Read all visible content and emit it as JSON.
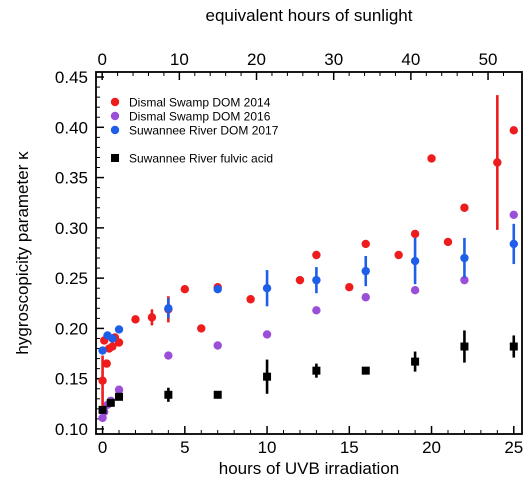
{
  "chart_data": {
    "type": "scatter",
    "title": "",
    "xlabel": "hours of UVB irradiation",
    "x2label": "equivalent hours of sunlight",
    "ylabel": "hygroscopicity parameter κ",
    "xlim": [
      -0.4,
      25.5
    ],
    "ylim": [
      0.095,
      0.455
    ],
    "x2lim": [
      -0.8,
      54.4
    ],
    "xticks": [
      0,
      5,
      10,
      15,
      20,
      25
    ],
    "x2ticks": [
      0,
      10,
      20,
      30,
      40,
      50
    ],
    "yticks": [
      0.1,
      0.15,
      0.2,
      0.25,
      0.3,
      0.35,
      0.4,
      0.45
    ],
    "xtick_labels": [
      "0",
      "5",
      "10",
      "15",
      "20",
      "25"
    ],
    "x2tick_labels": [
      "0",
      "10",
      "20",
      "30",
      "40",
      "50"
    ],
    "ytick_labels": [
      "0.10",
      "0.15",
      "0.20",
      "0.25",
      "0.30",
      "0.35",
      "0.40",
      "0.45"
    ],
    "grid": false,
    "legend_position": "top-left",
    "series": [
      {
        "name": "Dismal Swamp DOM 2014",
        "color": "#ee1c1c",
        "marker": "circle",
        "points": [
          {
            "x": 0.0,
            "y": 0.148,
            "err": 0.025
          },
          {
            "x": 0.1,
            "y": 0.188
          },
          {
            "x": 0.25,
            "y": 0.165
          },
          {
            "x": 0.4,
            "y": 0.18
          },
          {
            "x": 0.6,
            "y": 0.182
          },
          {
            "x": 0.75,
            "y": 0.191
          },
          {
            "x": 1.0,
            "y": 0.186
          },
          {
            "x": 2.0,
            "y": 0.209
          },
          {
            "x": 3.0,
            "y": 0.211,
            "err": 0.008
          },
          {
            "x": 4.0,
            "y": 0.219,
            "err": 0.013
          },
          {
            "x": 5.0,
            "y": 0.239
          },
          {
            "x": 6.0,
            "y": 0.2
          },
          {
            "x": 7.0,
            "y": 0.241
          },
          {
            "x": 9.0,
            "y": 0.229
          },
          {
            "x": 12.0,
            "y": 0.248
          },
          {
            "x": 13.0,
            "y": 0.273
          },
          {
            "x": 15.0,
            "y": 0.241
          },
          {
            "x": 16.0,
            "y": 0.284
          },
          {
            "x": 18.0,
            "y": 0.273
          },
          {
            "x": 19.0,
            "y": 0.294
          },
          {
            "x": 20.0,
            "y": 0.369
          },
          {
            "x": 21.0,
            "y": 0.286
          },
          {
            "x": 22.0,
            "y": 0.32
          },
          {
            "x": 24.0,
            "y": 0.365,
            "err": 0.067
          },
          {
            "x": 25.0,
            "y": 0.397
          }
        ]
      },
      {
        "name": "Dismal Swamp DOM 2016",
        "color": "#9b4fd9",
        "marker": "circle",
        "points": [
          {
            "x": 0.0,
            "y": 0.111
          },
          {
            "x": 0.1,
            "y": 0.117
          },
          {
            "x": 0.3,
            "y": 0.124
          },
          {
            "x": 0.5,
            "y": 0.128
          },
          {
            "x": 1.0,
            "y": 0.139
          },
          {
            "x": 4.0,
            "y": 0.173
          },
          {
            "x": 7.0,
            "y": 0.183
          },
          {
            "x": 10.0,
            "y": 0.194
          },
          {
            "x": 13.0,
            "y": 0.218
          },
          {
            "x": 16.0,
            "y": 0.231
          },
          {
            "x": 19.0,
            "y": 0.238
          },
          {
            "x": 22.0,
            "y": 0.248
          },
          {
            "x": 25.0,
            "y": 0.313
          }
        ]
      },
      {
        "name": "Suwannee River DOM 2017",
        "color": "#1e5ee8",
        "marker": "circle",
        "points": [
          {
            "x": 0.0,
            "y": 0.178
          },
          {
            "x": 0.3,
            "y": 0.193
          },
          {
            "x": 0.6,
            "y": 0.19
          },
          {
            "x": 1.0,
            "y": 0.199
          },
          {
            "x": 4.0,
            "y": 0.22,
            "err": 0.01
          },
          {
            "x": 7.0,
            "y": 0.239
          },
          {
            "x": 10.0,
            "y": 0.24,
            "err": 0.018
          },
          {
            "x": 13.0,
            "y": 0.248,
            "err": 0.013
          },
          {
            "x": 16.0,
            "y": 0.257,
            "err": 0.015
          },
          {
            "x": 19.0,
            "y": 0.267,
            "err": 0.023
          },
          {
            "x": 22.0,
            "y": 0.27,
            "err": 0.02
          },
          {
            "x": 25.0,
            "y": 0.284,
            "err": 0.02
          }
        ]
      },
      {
        "name": "Suwannee River fulvic acid",
        "color": "#000000",
        "marker": "square",
        "points": [
          {
            "x": 0.0,
            "y": 0.119
          },
          {
            "x": 0.5,
            "y": 0.126
          },
          {
            "x": 1.0,
            "y": 0.132
          },
          {
            "x": 4.0,
            "y": 0.134,
            "err": 0.007
          },
          {
            "x": 7.0,
            "y": 0.134
          },
          {
            "x": 10.0,
            "y": 0.152,
            "err": 0.017
          },
          {
            "x": 13.0,
            "y": 0.158,
            "err": 0.007
          },
          {
            "x": 16.0,
            "y": 0.158
          },
          {
            "x": 19.0,
            "y": 0.167,
            "err": 0.01
          },
          {
            "x": 22.0,
            "y": 0.182,
            "err": 0.016
          },
          {
            "x": 25.0,
            "y": 0.182,
            "err": 0.011
          }
        ]
      }
    ]
  }
}
